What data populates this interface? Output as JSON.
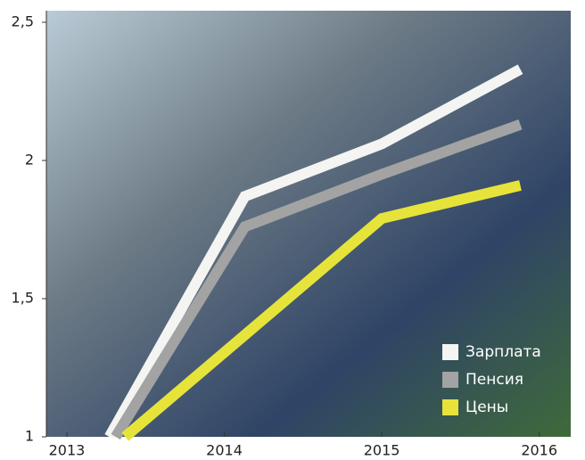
{
  "chart_data": {
    "type": "line",
    "series": [
      {
        "name": "Зарплата",
        "color": "#f4f4f2",
        "x": [
          2013.27,
          2014.13,
          2015.0,
          2015.88
        ],
        "values": [
          1,
          1.87,
          2.06,
          2.33
        ]
      },
      {
        "name": "Пенсия",
        "color": "#a3a3a3",
        "x": [
          2013.31,
          2014.13,
          2015.0,
          2015.88
        ],
        "values": [
          1,
          1.76,
          1.95,
          2.13
        ]
      },
      {
        "name": "Цены",
        "color": "#e6e43a",
        "x": [
          2013.37,
          2015.0,
          2015.88
        ],
        "values": [
          1,
          1.79,
          1.91
        ]
      }
    ],
    "xlim": [
      2012.87,
      2016.2
    ],
    "xticks": [
      2013,
      2014,
      2015,
      2016
    ],
    "ylim": [
      1,
      2.5
    ],
    "yticks": [
      1,
      {
        "value": 1.5,
        "label": "1,5"
      },
      2,
      {
        "value": 2.5,
        "label": "2,5"
      }
    ],
    "legend": "lower right"
  }
}
